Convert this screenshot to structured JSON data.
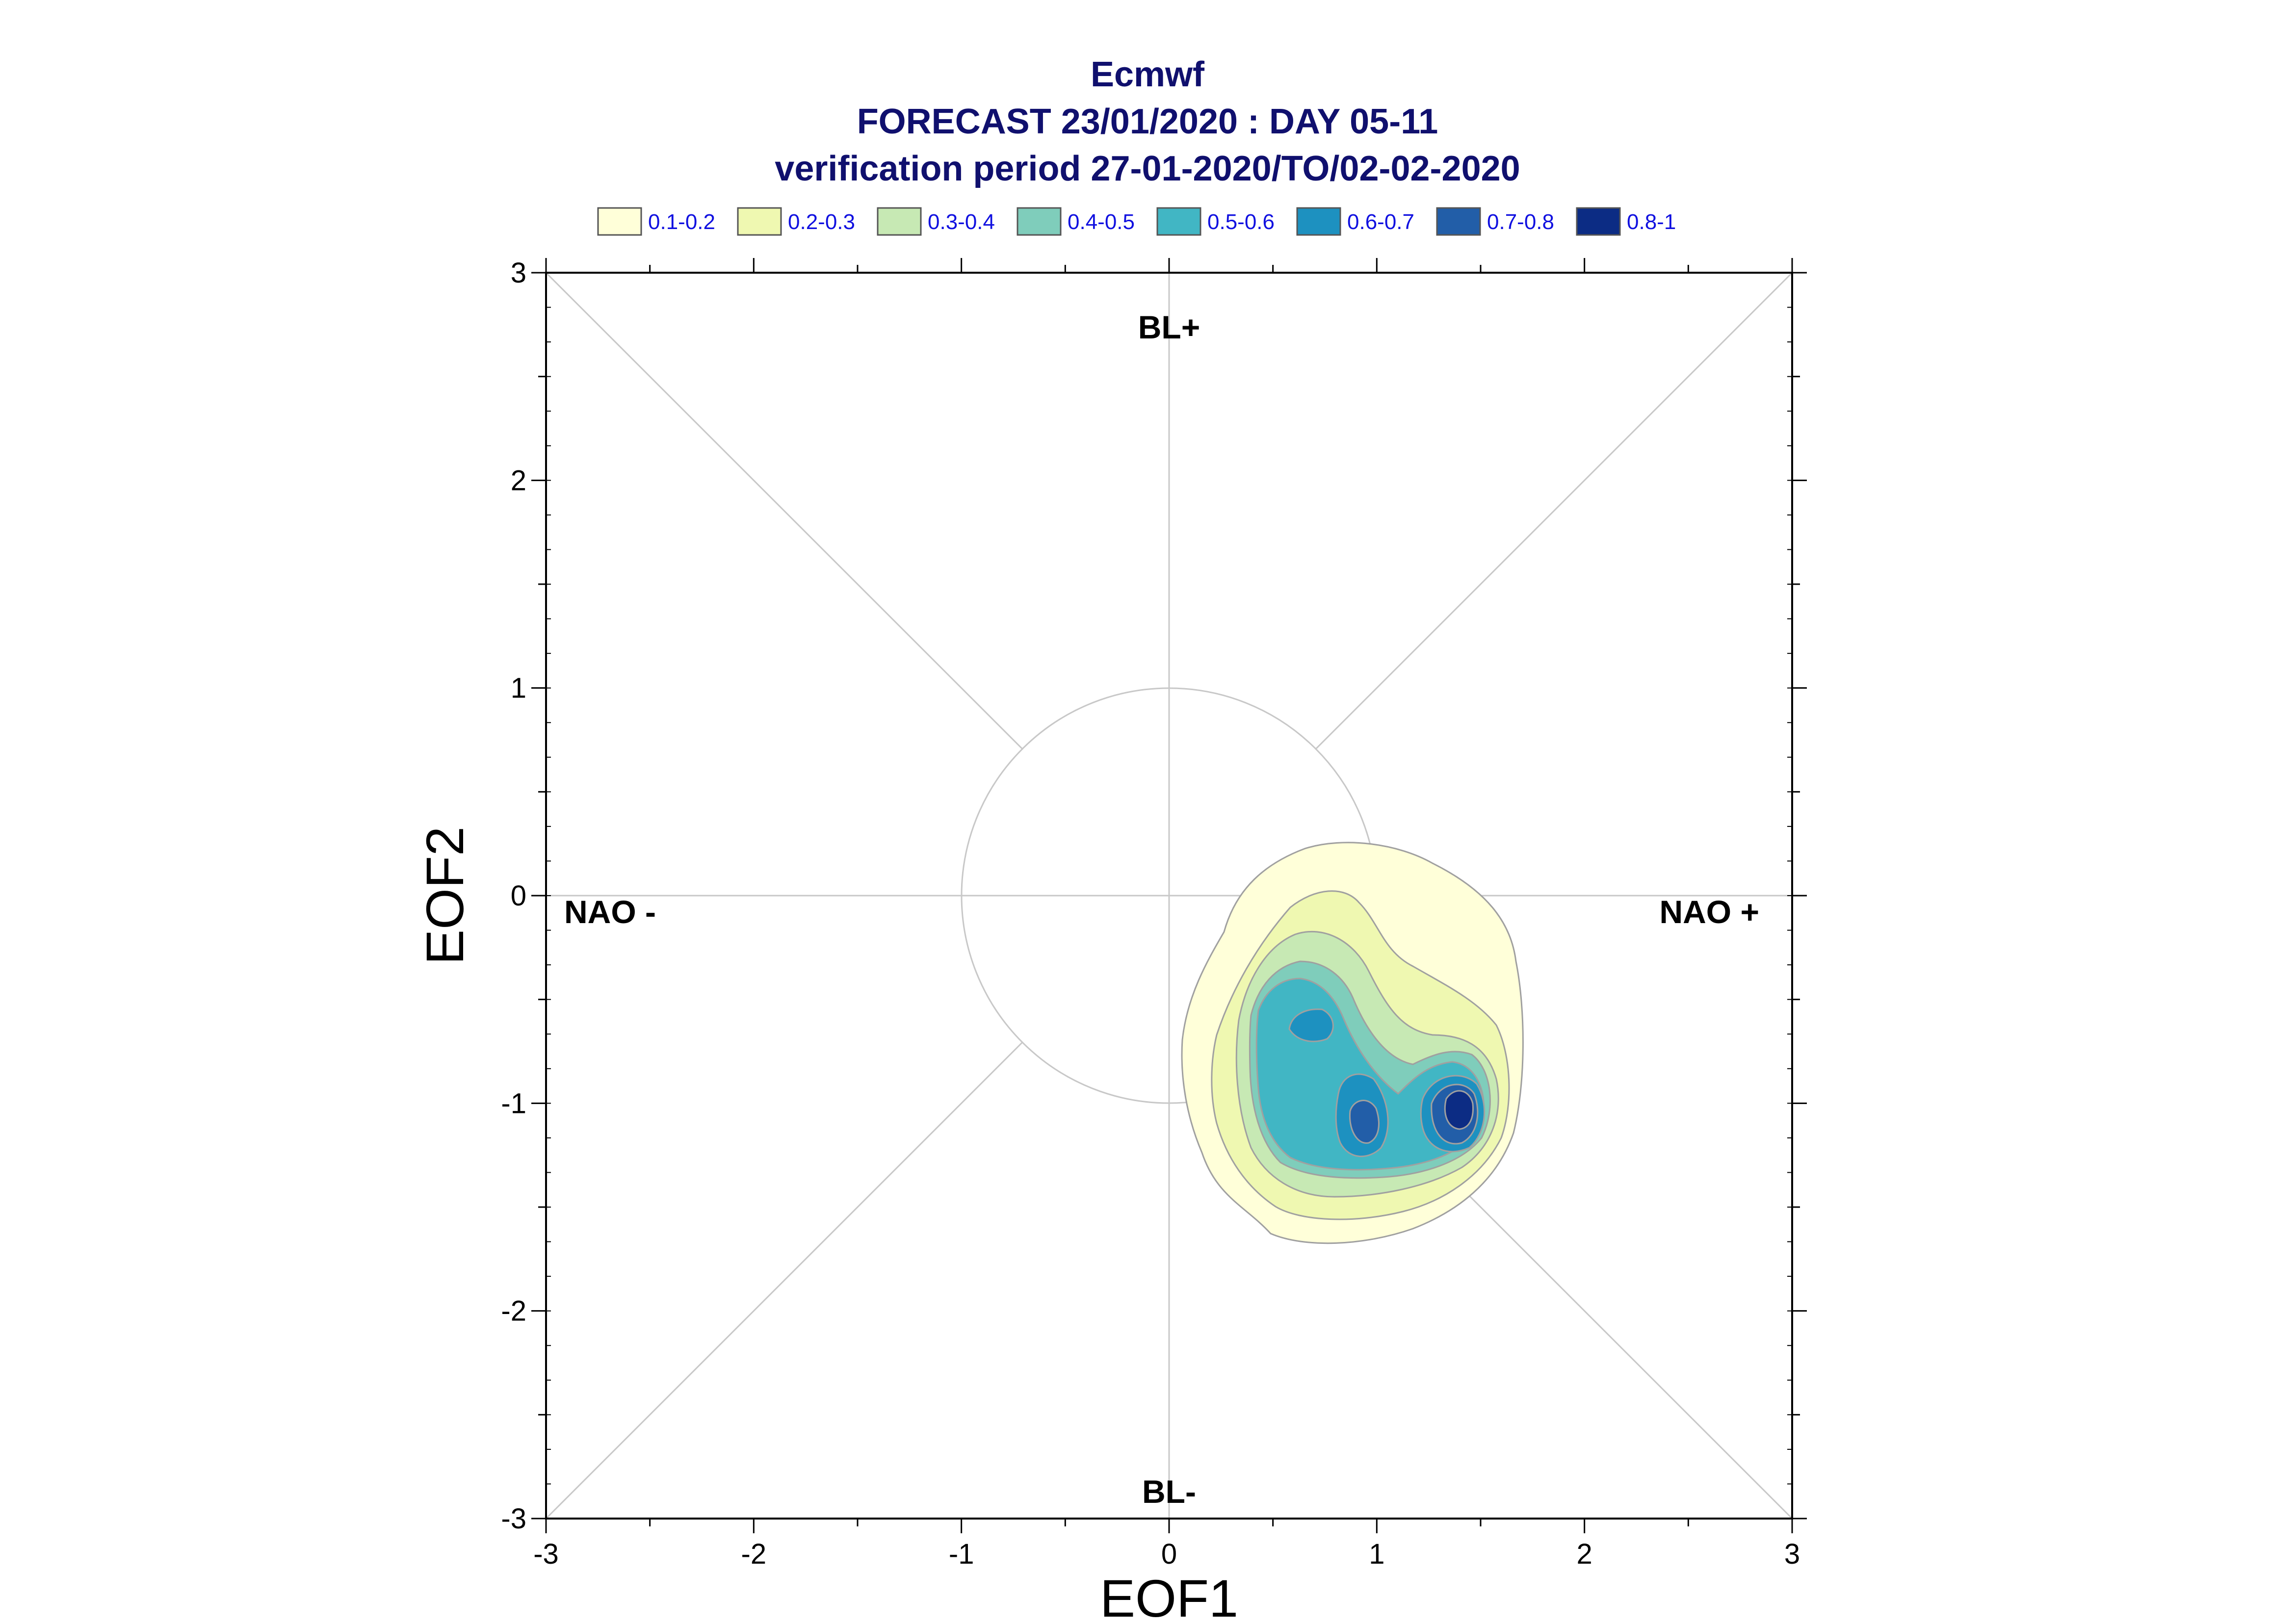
{
  "chart_data": {
    "type": "contour",
    "title_lines": [
      "Ecmwf",
      "FORECAST 23/01/2020 : DAY 05-11",
      "verification period 27-01-2020/TO/02-02-2020"
    ],
    "xlabel": "EOF1",
    "ylabel": "EOF2",
    "xlim": [
      -3,
      3
    ],
    "ylim": [
      -3,
      3
    ],
    "xticks": [
      "-3",
      "-2",
      "-1",
      "0",
      "1",
      "2",
      "3"
    ],
    "yticks": [
      "3",
      "2",
      "1",
      "0",
      "-1",
      "-2",
      "-3"
    ],
    "regime_labels": {
      "top": "BL+",
      "bottom": "BL-",
      "left": "NAO -",
      "right": "NAO +"
    },
    "reference_circle_radius": 1,
    "legend": [
      {
        "label": "0.1-0.2",
        "color": "#ffffd9"
      },
      {
        "label": "0.2-0.3",
        "color": "#eff8b1"
      },
      {
        "label": "0.3-0.4",
        "color": "#c7e9b4"
      },
      {
        "label": "0.4-0.5",
        "color": "#7fcdbb"
      },
      {
        "label": "0.5-0.6",
        "color": "#41b6c4"
      },
      {
        "label": "0.6-0.7",
        "color": "#1d91c0"
      },
      {
        "label": "0.7-0.8",
        "color": "#225ea8"
      },
      {
        "label": "0.8-1",
        "color": "#0c2c84"
      }
    ],
    "density_peaks": [
      {
        "x": 1.4,
        "y": -1.02,
        "max_level": "0.8-1"
      },
      {
        "x": 0.95,
        "y": -1.1,
        "max_level": "0.7-0.8"
      },
      {
        "x": 0.7,
        "y": -0.63,
        "max_level": "0.6-0.7"
      }
    ]
  }
}
